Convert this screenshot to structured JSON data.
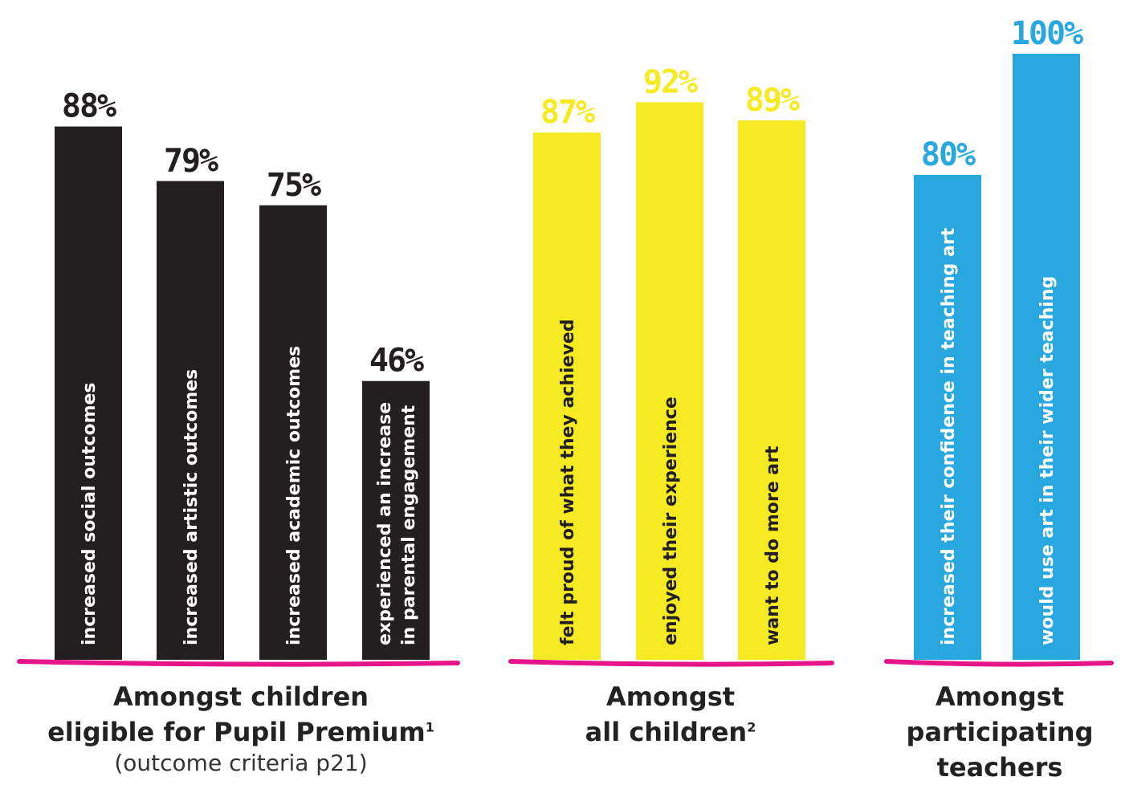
{
  "colors": {
    "group1_bar": "#231f20",
    "group2_bar": "#f6eb23",
    "group3_bar": "#29a8e0",
    "baseline": "#e6168a",
    "label_on_dark": "#ffffff",
    "label_on_light": "#231f20"
  },
  "chart_data": [
    {
      "type": "bar",
      "categories": [
        "increased social outcomes",
        "increased artistic outcomes",
        "increased academic outcomes",
        "experienced an increase in parental engagement"
      ],
      "category_lines": [
        [
          "increased social outcomes"
        ],
        [
          "increased artistic outcomes"
        ],
        [
          "increased academic outcomes"
        ],
        [
          "experienced an increase",
          "in parental engagement"
        ]
      ],
      "values": [
        88,
        79,
        75,
        46
      ],
      "value_labels": [
        "88%",
        "79%",
        "75%",
        "46%"
      ],
      "unit": "%",
      "ylim": [
        0,
        100
      ],
      "caption_line1": "Amongst children",
      "caption_line2": "eligible for Pupil Premium",
      "caption_sup": "1",
      "caption_sub": "(outcome criteria p21)"
    },
    {
      "type": "bar",
      "categories": [
        "felt proud of what they achieved",
        "enjoyed their experience",
        "want to do more art"
      ],
      "category_lines": [
        [
          "felt proud of what they achieved"
        ],
        [
          "enjoyed their experience"
        ],
        [
          "want to do more art"
        ]
      ],
      "values": [
        87,
        92,
        89
      ],
      "value_labels": [
        "87%",
        "92%",
        "89%"
      ],
      "unit": "%",
      "ylim": [
        0,
        100
      ],
      "caption_line1": "Amongst",
      "caption_line2": "all children",
      "caption_sup": "2"
    },
    {
      "type": "bar",
      "categories": [
        "increased their confidence in teaching art",
        "would use art in their wider teaching"
      ],
      "category_lines": [
        [
          "increased their confidence in teaching art"
        ],
        [
          "would use art in their wider teaching"
        ]
      ],
      "values": [
        80,
        100
      ],
      "value_labels": [
        "80%",
        "100%"
      ],
      "unit": "%",
      "ylim": [
        0,
        100
      ],
      "caption_line1": "Amongst",
      "caption_line2": "participating",
      "caption_line3": "teachers"
    }
  ]
}
